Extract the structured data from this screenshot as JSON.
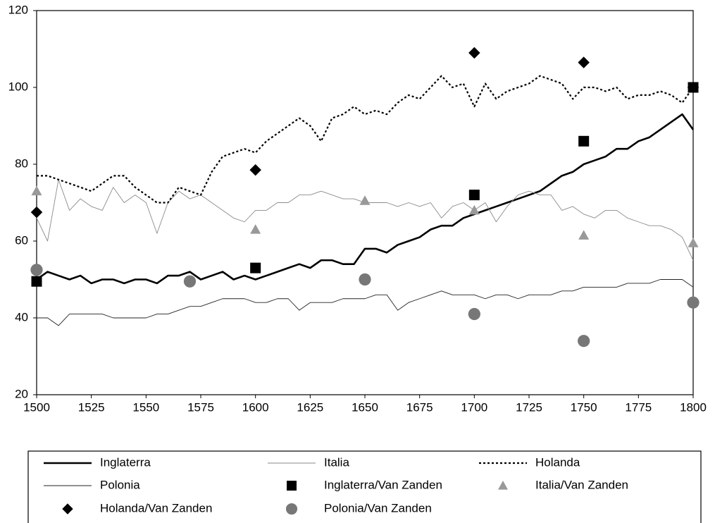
{
  "chart_data": {
    "type": "line",
    "xlim": [
      1500,
      1800
    ],
    "xticks": [
      1500,
      1525,
      1550,
      1575,
      1600,
      1625,
      1650,
      1675,
      1700,
      1725,
      1750,
      1775,
      1800
    ],
    "ylim": [
      20,
      120
    ],
    "yticks": [
      20,
      40,
      60,
      80,
      100,
      120
    ],
    "x": [
      1500,
      1505,
      1510,
      1515,
      1520,
      1525,
      1530,
      1535,
      1540,
      1545,
      1550,
      1555,
      1560,
      1565,
      1570,
      1575,
      1580,
      1585,
      1590,
      1595,
      1600,
      1605,
      1610,
      1615,
      1620,
      1625,
      1630,
      1635,
      1640,
      1645,
      1650,
      1655,
      1660,
      1665,
      1670,
      1675,
      1680,
      1685,
      1690,
      1695,
      1700,
      1705,
      1710,
      1715,
      1720,
      1725,
      1730,
      1735,
      1740,
      1745,
      1750,
      1755,
      1760,
      1765,
      1770,
      1775,
      1780,
      1785,
      1790,
      1795,
      1800
    ],
    "series": [
      {
        "name": "Inglaterra",
        "type": "line",
        "color": "#000000",
        "width": 2.6,
        "dash": "none",
        "values": [
          50,
          52,
          51,
          50,
          51,
          49,
          50,
          50,
          49,
          50,
          50,
          49,
          51,
          51,
          52,
          50,
          51,
          52,
          50,
          51,
          50,
          51,
          52,
          53,
          54,
          53,
          55,
          55,
          54,
          54,
          58,
          58,
          57,
          59,
          60,
          61,
          63,
          64,
          64,
          66,
          67,
          68,
          69,
          70,
          71,
          72,
          73,
          75,
          77,
          78,
          80,
          81,
          82,
          84,
          84,
          86,
          87,
          89,
          91,
          93,
          89
        ]
      },
      {
        "name": "Italia",
        "type": "line",
        "color": "#8a8a8a",
        "width": 0.9,
        "dash": "none",
        "values": [
          66,
          60,
          76,
          68,
          71,
          69,
          68,
          74,
          70,
          72,
          70,
          62,
          70,
          73,
          71,
          72,
          70,
          68,
          66,
          65,
          68,
          68,
          70,
          70,
          72,
          72,
          73,
          72,
          71,
          71,
          70,
          70,
          70,
          69,
          70,
          69,
          70,
          66,
          69,
          70,
          68,
          70,
          65,
          69,
          72,
          73,
          72,
          72,
          68,
          69,
          67,
          66,
          68,
          68,
          66,
          65,
          64,
          64,
          63,
          61,
          55
        ]
      },
      {
        "name": "Holanda",
        "type": "line",
        "color": "#000000",
        "width": 2.2,
        "dash": "3,3",
        "values": [
          77,
          77,
          76,
          75,
          74,
          73,
          75,
          77,
          77,
          74,
          72,
          70,
          70,
          74,
          73,
          72,
          78,
          82,
          83,
          84,
          83,
          86,
          88,
          90,
          92,
          90,
          86,
          92,
          93,
          95,
          93,
          94,
          93,
          96,
          98,
          97,
          100,
          103,
          100,
          101,
          95,
          101,
          97,
          99,
          100,
          101,
          103,
          102,
          101,
          97,
          100,
          100,
          99,
          100,
          97,
          98,
          98,
          99,
          98,
          96,
          100
        ]
      },
      {
        "name": "Polonia",
        "type": "line",
        "color": "#222222",
        "width": 0.9,
        "dash": "none",
        "values": [
          40,
          40,
          38,
          41,
          41,
          41,
          41,
          40,
          40,
          40,
          40,
          41,
          41,
          42,
          43,
          43,
          44,
          45,
          45,
          45,
          44,
          44,
          45,
          45,
          42,
          44,
          44,
          44,
          45,
          45,
          45,
          46,
          46,
          42,
          44,
          45,
          46,
          47,
          46,
          46,
          46,
          45,
          46,
          46,
          45,
          46,
          46,
          46,
          47,
          47,
          48,
          48,
          48,
          48,
          49,
          49,
          49,
          50,
          50,
          50,
          48
        ]
      },
      {
        "name": "Inglaterra/Van Zanden",
        "type": "scatter",
        "marker": "square",
        "color": "#000000",
        "x": [
          1500,
          1600,
          1700,
          1750,
          1800
        ],
        "values": [
          49.5,
          53,
          72,
          86,
          100
        ]
      },
      {
        "name": "Italia/Van Zanden",
        "type": "scatter",
        "marker": "triangle",
        "color": "#999999",
        "x": [
          1500,
          1600,
          1650,
          1700,
          1750,
          1800
        ],
        "values": [
          73,
          63,
          70.5,
          68,
          61.5,
          59.5
        ]
      },
      {
        "name": "Holanda/Van Zanden",
        "type": "scatter",
        "marker": "diamond",
        "color": "#000000",
        "x": [
          1500,
          1600,
          1700,
          1750,
          1800
        ],
        "values": [
          67.5,
          78.5,
          109,
          106.5,
          100
        ]
      },
      {
        "name": "Polonia/Van Zanden",
        "type": "scatter",
        "marker": "circle",
        "color": "#777777",
        "x": [
          1500,
          1570,
          1650,
          1700,
          1750,
          1800
        ],
        "values": [
          52.5,
          49.5,
          50,
          41,
          34,
          44
        ]
      }
    ]
  }
}
